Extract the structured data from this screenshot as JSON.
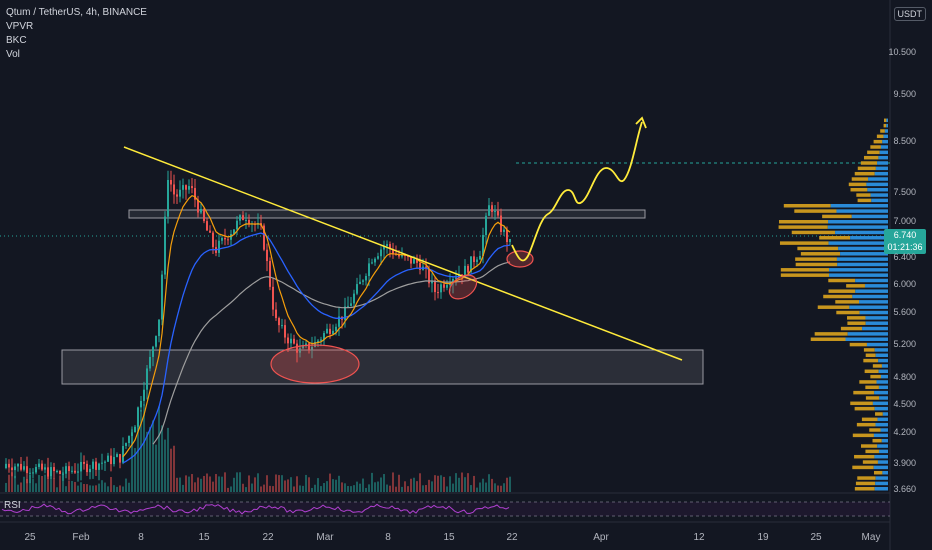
{
  "legend": {
    "symbol": "Qtum / TetherUS, 4h, BINANCE",
    "indicators": [
      "VPVR",
      "BKC",
      "Vol"
    ]
  },
  "rsi_label": "RSI",
  "currency_badge": "USDT",
  "last_price": {
    "value": "6.740",
    "countdown": "01:21:36"
  },
  "colors": {
    "background": "#131722",
    "up": "#26a69a",
    "down": "#ef5350",
    "trendline": "#ffeb3b",
    "ema_fast": "#f59e0b",
    "ema_mid": "#2962ff",
    "ema_slow": "#9e9e9e",
    "rsi": "#b040d0",
    "vpvr_value_area": "#2a8bd8",
    "vpvr_outside": "#c8961e"
  },
  "y_axis_labels": [
    "10.500",
    "9.500",
    "8.500",
    "7.500",
    "7.000",
    "6.400",
    "6.000",
    "5.600",
    "5.200",
    "4.800",
    "4.500",
    "4.200",
    "3.900",
    "3.660"
  ],
  "x_axis_labels": [
    "25",
    "Feb",
    "8",
    "15",
    "22",
    "Mar",
    "8",
    "15",
    "22",
    "Apr",
    "12",
    "19",
    "25",
    "May"
  ],
  "chart_data": {
    "type": "candlestick",
    "pair": "Qtum / TetherUS",
    "interval": "4h",
    "exchange": "BINANCE",
    "last_price": 6.74,
    "y_range": [
      3.66,
      11.0
    ],
    "annotations": {
      "support_zone": [
        4.75,
        5.1
      ],
      "resistance_zone": [
        7.0,
        7.1
      ],
      "target_level": 8.0,
      "descending_trendline": "from ~8.4 (early Feb) to ~5.0 (mid Apr)",
      "projection": "wave path from 6.5 up to ~9.0"
    }
  }
}
